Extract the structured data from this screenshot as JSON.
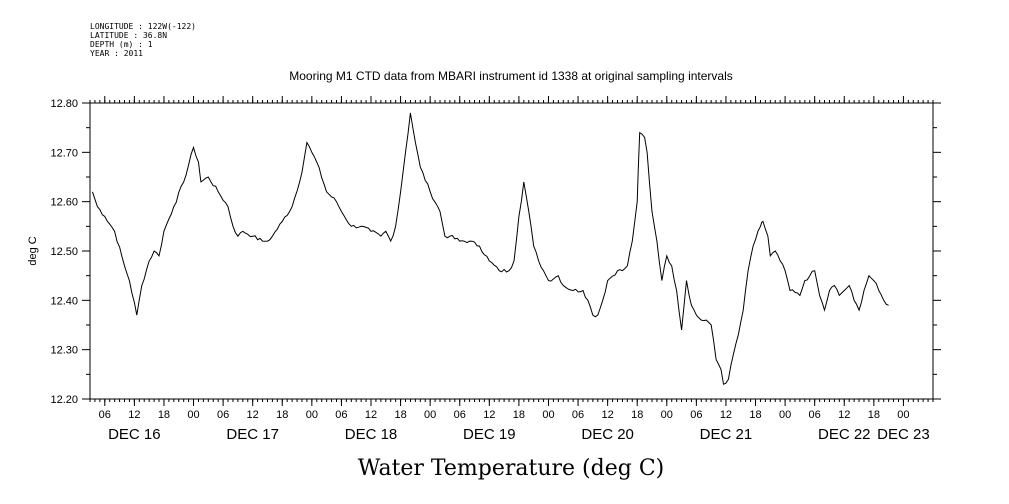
{
  "header": {
    "longitude": "LONGITUDE : 122W(-122)",
    "latitude": "LATITUDE : 36.8N",
    "depth": "DEPTH (m) : 1",
    "year": "YEAR : 2011"
  },
  "chart_data": {
    "type": "line",
    "title": "Mooring M1 CTD data from MBARI instrument id 1338 at original sampling intervals",
    "xlabel": "Water Temperature (deg C)",
    "ylabel": "deg C",
    "ylim": [
      12.2,
      12.8
    ],
    "xlim_hours": [
      3,
      174
    ],
    "y_ticks": [
      "12.20",
      "12.30",
      "12.40",
      "12.50",
      "12.60",
      "12.70",
      "12.80"
    ],
    "hour_ticks": [
      {
        "h": 6,
        "label": "06"
      },
      {
        "h": 12,
        "label": "12"
      },
      {
        "h": 18,
        "label": "18"
      },
      {
        "h": 24,
        "label": "00"
      },
      {
        "h": 30,
        "label": "06"
      },
      {
        "h": 36,
        "label": "12"
      },
      {
        "h": 42,
        "label": "18"
      },
      {
        "h": 48,
        "label": "00"
      },
      {
        "h": 54,
        "label": "06"
      },
      {
        "h": 60,
        "label": "12"
      },
      {
        "h": 66,
        "label": "18"
      },
      {
        "h": 72,
        "label": "00"
      },
      {
        "h": 78,
        "label": "06"
      },
      {
        "h": 84,
        "label": "12"
      },
      {
        "h": 90,
        "label": "18"
      },
      {
        "h": 96,
        "label": "00"
      },
      {
        "h": 102,
        "label": "06"
      },
      {
        "h": 108,
        "label": "12"
      },
      {
        "h": 114,
        "label": "18"
      },
      {
        "h": 120,
        "label": "00"
      },
      {
        "h": 126,
        "label": "06"
      },
      {
        "h": 132,
        "label": "12"
      },
      {
        "h": 138,
        "label": "18"
      },
      {
        "h": 144,
        "label": "00"
      },
      {
        "h": 150,
        "label": "06"
      },
      {
        "h": 156,
        "label": "12"
      },
      {
        "h": 162,
        "label": "18"
      },
      {
        "h": 168,
        "label": "00"
      }
    ],
    "day_labels": [
      {
        "h": 12,
        "label": "DEC 16"
      },
      {
        "h": 36,
        "label": "DEC 17"
      },
      {
        "h": 60,
        "label": "DEC 18"
      },
      {
        "h": 84,
        "label": "DEC 19"
      },
      {
        "h": 108,
        "label": "DEC 20"
      },
      {
        "h": 132,
        "label": "DEC 21"
      },
      {
        "h": 156,
        "label": "DEC 22"
      },
      {
        "h": 168,
        "label": "DEC 23"
      }
    ],
    "series": [
      {
        "color": "#000000",
        "points": [
          [
            3.5,
            12.62
          ],
          [
            4.5,
            12.59
          ],
          [
            6,
            12.57
          ],
          [
            8,
            12.54
          ],
          [
            10,
            12.47
          ],
          [
            11,
            12.44
          ],
          [
            12.5,
            12.37
          ],
          [
            13.5,
            12.43
          ],
          [
            15,
            12.48
          ],
          [
            16,
            12.5
          ],
          [
            17,
            12.49
          ],
          [
            18,
            12.54
          ],
          [
            20,
            12.59
          ],
          [
            22,
            12.64
          ],
          [
            24,
            12.71
          ],
          [
            25,
            12.68
          ],
          [
            25.5,
            12.64
          ],
          [
            27,
            12.65
          ],
          [
            29,
            12.62
          ],
          [
            31,
            12.59
          ],
          [
            32,
            12.55
          ],
          [
            33,
            12.53
          ],
          [
            34,
            12.54
          ],
          [
            36,
            12.53
          ],
          [
            38,
            12.52
          ],
          [
            39,
            12.52
          ],
          [
            40,
            12.53
          ],
          [
            42,
            12.56
          ],
          [
            44,
            12.59
          ],
          [
            46,
            12.66
          ],
          [
            47,
            12.72
          ],
          [
            48,
            12.7
          ],
          [
            49,
            12.68
          ],
          [
            51,
            12.62
          ],
          [
            53,
            12.6
          ],
          [
            54,
            12.58
          ],
          [
            56,
            12.55
          ],
          [
            58,
            12.55
          ],
          [
            60,
            12.54
          ],
          [
            62,
            12.53
          ],
          [
            63,
            12.54
          ],
          [
            64,
            12.52
          ],
          [
            65,
            12.55
          ],
          [
            66,
            12.62
          ],
          [
            67,
            12.7
          ],
          [
            68,
            12.78
          ],
          [
            69,
            12.72
          ],
          [
            70,
            12.67
          ],
          [
            72,
            12.62
          ],
          [
            74,
            12.58
          ],
          [
            75,
            12.53
          ],
          [
            76,
            12.53
          ],
          [
            78,
            12.52
          ],
          [
            80,
            12.52
          ],
          [
            82,
            12.51
          ],
          [
            84,
            12.48
          ],
          [
            86,
            12.46
          ],
          [
            88,
            12.46
          ],
          [
            89,
            12.48
          ],
          [
            90,
            12.57
          ],
          [
            91,
            12.64
          ],
          [
            92,
            12.58
          ],
          [
            93,
            12.51
          ],
          [
            94,
            12.48
          ],
          [
            95,
            12.46
          ],
          [
            96,
            12.44
          ],
          [
            98,
            12.45
          ],
          [
            99,
            12.43
          ],
          [
            101,
            12.42
          ],
          [
            103,
            12.42
          ],
          [
            104,
            12.4
          ],
          [
            105,
            12.37
          ],
          [
            106,
            12.37
          ],
          [
            107,
            12.4
          ],
          [
            108,
            12.44
          ],
          [
            110,
            12.46
          ],
          [
            111,
            12.46
          ],
          [
            112,
            12.47
          ],
          [
            113,
            12.52
          ],
          [
            114,
            12.6
          ],
          [
            114.5,
            12.74
          ],
          [
            115.5,
            12.73
          ],
          [
            116,
            12.7
          ],
          [
            117,
            12.58
          ],
          [
            118,
            12.52
          ],
          [
            119,
            12.44
          ],
          [
            120,
            12.49
          ],
          [
            121,
            12.47
          ],
          [
            122,
            12.42
          ],
          [
            123,
            12.34
          ],
          [
            124,
            12.44
          ],
          [
            125,
            12.39
          ],
          [
            126,
            12.37
          ],
          [
            127,
            12.36
          ],
          [
            128,
            12.36
          ],
          [
            129,
            12.35
          ],
          [
            130,
            12.28
          ],
          [
            131,
            12.26
          ],
          [
            131.5,
            12.23
          ],
          [
            132.5,
            12.24
          ],
          [
            133.5,
            12.29
          ],
          [
            134.5,
            12.33
          ],
          [
            135.5,
            12.38
          ],
          [
            136.5,
            12.46
          ],
          [
            137.5,
            12.51
          ],
          [
            139,
            12.55
          ],
          [
            139.5,
            12.56
          ],
          [
            140.5,
            12.53
          ],
          [
            141,
            12.49
          ],
          [
            142,
            12.5
          ],
          [
            143,
            12.48
          ],
          [
            144,
            12.46
          ],
          [
            145,
            12.42
          ],
          [
            147,
            12.41
          ],
          [
            148,
            12.44
          ],
          [
            149,
            12.45
          ],
          [
            150,
            12.46
          ],
          [
            151,
            12.41
          ],
          [
            152,
            12.38
          ],
          [
            153,
            12.42
          ],
          [
            154,
            12.43
          ],
          [
            155,
            12.41
          ],
          [
            156,
            12.42
          ],
          [
            157,
            12.43
          ],
          [
            158,
            12.4
          ],
          [
            159,
            12.38
          ],
          [
            160,
            12.42
          ],
          [
            161,
            12.45
          ],
          [
            162,
            12.44
          ],
          [
            163,
            12.42
          ],
          [
            164,
            12.4
          ],
          [
            165,
            12.39
          ]
        ]
      }
    ]
  }
}
